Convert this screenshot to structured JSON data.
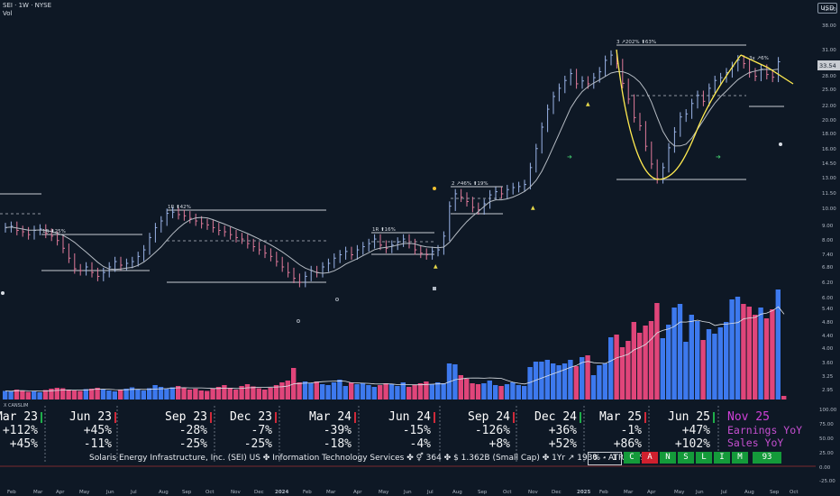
{
  "header": {
    "title": "SEI · 1W · NYSE",
    "vol_label": "Vol"
  },
  "currency": "USD",
  "colors": {
    "background": "#0e1825",
    "up_bar": "#3d79ee",
    "down_bar": "#e0457a",
    "sma": "#b6bcc4",
    "cup_line": "#ffea50",
    "price_tag": "#c8ccd2"
  },
  "chart_data": {
    "type": "bar",
    "price_axis": {
      "scale": "log",
      "ticks": [
        "42.00",
        "38.00",
        "31.00",
        "28.00",
        "25.00",
        "22.00",
        "20.00",
        "18.00",
        "16.00",
        "14.50",
        "13.00",
        "11.50",
        "10.00",
        "9.00",
        "8.00",
        "7.40",
        "6.80",
        "6.20",
        "6.00",
        "5.40",
        "4.80",
        "4.40",
        "4.00",
        "3.60",
        "3.25",
        "2.95"
      ],
      "current_price": "33.54"
    },
    "oscillator_axis": {
      "ticks": [
        "100.00",
        "75.00",
        "50.00",
        "25.00",
        "0.00",
        "-25.00"
      ]
    },
    "time_axis": [
      "Feb",
      "Mar",
      "Apr",
      "May",
      "Jun",
      "Jul",
      "Aug",
      "Sep",
      "Oct",
      "Nov",
      "Dec",
      "2024",
      "Feb",
      "Mar",
      "Apr",
      "May",
      "Jun",
      "Jul",
      "Aug",
      "Sep",
      "Oct",
      "Nov",
      "Dec",
      "2025",
      "Feb",
      "Mar",
      "Apr",
      "May",
      "Jun",
      "Jul",
      "Aug",
      "Sep",
      "Oct"
    ],
    "annotations": [
      "1R ⬆25%",
      "1R ⬆42%",
      "1R ⬆16%",
      "2 ↗46% ⬆19%",
      "3 ↗202% ⬆63%",
      "3x ↗6%"
    ],
    "weekly_close": [
      10.1,
      10.2,
      9.9,
      9.8,
      9.6,
      9.9,
      10.0,
      9.7,
      9.5,
      9.2,
      8.7,
      8.1,
      7.5,
      7.4,
      7.6,
      7.3,
      7.1,
      7.3,
      7.6,
      7.9,
      7.7,
      7.8,
      7.9,
      8.2,
      8.6,
      9.4,
      10.1,
      10.6,
      11.2,
      11.3,
      11.1,
      11.0,
      10.8,
      10.6,
      10.4,
      10.3,
      10.1,
      9.9,
      9.8,
      9.6,
      9.4,
      9.3,
      9.0,
      8.8,
      8.6,
      8.4,
      8.2,
      7.9,
      7.6,
      7.3,
      7.0,
      6.8,
      7.1,
      7.4,
      7.3,
      7.6,
      7.8,
      8.1,
      8.3,
      8.5,
      8.3,
      8.6,
      8.8,
      9.0,
      9.3,
      8.9,
      8.7,
      8.9,
      9.1,
      9.3,
      9.0,
      8.6,
      8.4,
      8.3,
      8.5,
      8.6,
      9.5,
      11.8,
      12.9,
      12.6,
      12.2,
      11.7,
      11.5,
      12.0,
      12.8,
      13.1,
      12.9,
      13.3,
      13.5,
      13.6,
      13.8,
      15.6,
      17.9,
      20.9,
      23.8,
      26.1,
      27.7,
      29.3,
      30.8,
      28.6,
      29.2,
      28.6,
      29.9,
      31.2,
      33.9,
      35.2,
      33.1,
      28.7,
      25.6,
      22.4,
      21.1,
      18.2,
      16.0,
      14.4,
      15.6,
      18.0,
      20.2,
      22.5,
      23.0,
      24.8,
      26.3,
      25.2,
      27.7,
      29.3,
      29.9,
      31.0,
      32.4,
      34.0,
      33.1,
      31.0,
      30.2,
      31.8,
      30.6,
      30.0,
      33.54
    ],
    "weekly_volume": [
      0.95,
      0.9,
      1.1,
      1.0,
      0.85,
      0.9,
      0.8,
      1.05,
      1.2,
      1.3,
      1.25,
      1.1,
      1.0,
      0.95,
      1.15,
      1.2,
      1.3,
      1.1,
      1.0,
      0.9,
      1.05,
      1.2,
      1.35,
      1.15,
      1.0,
      1.25,
      1.6,
      1.4,
      1.2,
      1.35,
      1.5,
      1.3,
      1.1,
      1.2,
      1.0,
      0.95,
      1.25,
      1.4,
      1.6,
      1.3,
      1.1,
      1.5,
      1.7,
      1.45,
      1.25,
      1.1,
      1.3,
      1.6,
      1.9,
      2.1,
      3.5,
      1.9,
      2.0,
      1.8,
      2.0,
      1.7,
      1.6,
      1.9,
      2.2,
      1.5,
      1.9,
      1.7,
      1.8,
      1.6,
      1.4,
      1.6,
      1.8,
      1.7,
      1.5,
      1.9,
      1.4,
      1.6,
      1.8,
      2.0,
      1.7,
      1.9,
      1.8,
      4.0,
      3.9,
      2.7,
      2.3,
      1.8,
      1.7,
      1.8,
      2.1,
      1.6,
      1.5,
      1.7,
      1.9,
      1.6,
      1.5,
      3.6,
      4.2,
      4.2,
      4.4,
      4.0,
      3.8,
      4.0,
      4.4,
      3.7,
      4.7,
      4.9,
      2.7,
      3.8,
      4.0,
      6.9,
      7.2,
      5.8,
      6.5,
      8.6,
      7.4,
      8.2,
      8.7,
      10.7,
      6.8,
      8.3,
      10.2,
      10.6,
      6.4,
      9.4,
      8.7,
      6.6,
      7.8,
      7.3,
      8.0,
      8.6,
      11.1,
      11.4,
      10.6,
      10.3,
      9.4,
      10.2,
      9.0,
      10.0,
      12.2,
      0.4
    ]
  },
  "quarters": [
    {
      "label": "Mar 23",
      "eps": "+112%",
      "sales": "+45%",
      "flag": "green"
    },
    {
      "label": "Jun 23",
      "eps": "+45%",
      "sales": "-11%",
      "flag": "red"
    },
    {
      "label": "Sep 23",
      "eps": "-28%",
      "sales": "-25%",
      "flag": "red"
    },
    {
      "label": "Dec 23",
      "eps": "-7%",
      "sales": "-25%",
      "flag": "red"
    },
    {
      "label": "Mar 24",
      "eps": "-39%",
      "sales": "-18%",
      "flag": "red"
    },
    {
      "label": "Jun 24",
      "eps": "-15%",
      "sales": "-4%",
      "flag": "red"
    },
    {
      "label": "Sep 24",
      "eps": "-126%",
      "sales": "+8%",
      "flag": "red"
    },
    {
      "label": "Dec 24",
      "eps": "+36%",
      "sales": "+52%",
      "flag": "green"
    },
    {
      "label": "Mar 25",
      "eps": "-1%",
      "sales": "+86%",
      "flag": "red"
    },
    {
      "label": "Jun 25",
      "eps": "+47%",
      "sales": "+102%",
      "flag": "green"
    }
  ],
  "next_quarter": {
    "label": "Nov 25",
    "eps_label": "Earnings YoY",
    "sales_label": "Sales YoY"
  },
  "canslim_label": "X CANSLIM",
  "info_line": "Solaris Energy Infrastructure, Inc. (SEI) US ✤ Information Technology Services ✤ ⚥ 364  ✤  $ 1.362B (Small Cap) ✤ 1Yr ↗ 193% - ATR 6.4%",
  "score_box": "0 · 1",
  "canslim_letters": [
    "C",
    "A",
    "N",
    "S",
    "L",
    "I",
    "M"
  ],
  "canslim_status": [
    "green",
    "red",
    "green",
    "green",
    "green",
    "green",
    "green"
  ],
  "rating": "93"
}
